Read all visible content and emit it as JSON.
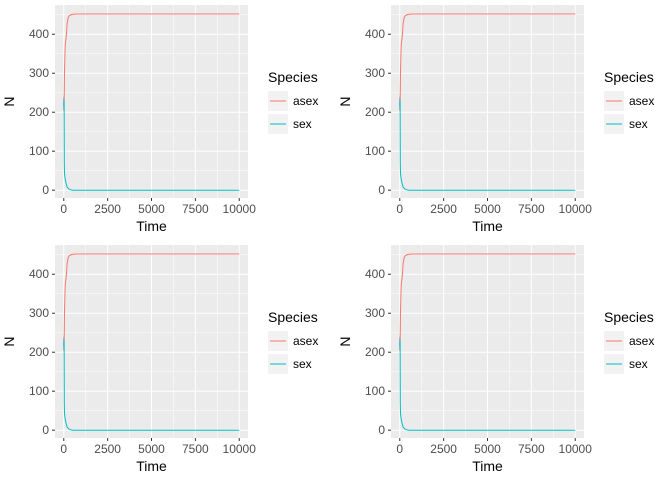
{
  "chart_data": [
    {
      "type": "line",
      "xlabel": "Time",
      "ylabel": "N",
      "xlim": [
        -500,
        10500
      ],
      "ylim": [
        -20,
        475
      ],
      "x_ticks": [
        0,
        2500,
        5000,
        7500,
        10000
      ],
      "x_tick_labels": [
        "0",
        "2500",
        "5000",
        "7500",
        "10000"
      ],
      "y_ticks": [
        0,
        100,
        200,
        300,
        400
      ],
      "y_tick_labels": [
        "0",
        "100",
        "200",
        "300",
        "400"
      ],
      "grid": true,
      "legend": {
        "title": "Species",
        "position": "right"
      },
      "series": [
        {
          "name": "asex",
          "color": "#F8766D",
          "x": [
            0,
            5,
            10,
            20,
            30,
            40,
            60,
            80,
            100,
            120,
            150,
            180,
            200,
            250,
            300,
            400,
            500,
            700,
            1000,
            2000,
            5000,
            7500,
            10000
          ],
          "y": [
            205,
            240,
            215,
            230,
            260,
            300,
            340,
            370,
            380,
            385,
            400,
            420,
            430,
            442,
            447,
            450,
            451,
            452,
            452,
            452,
            452,
            452,
            452
          ]
        },
        {
          "name": "sex",
          "color": "#00BFC4",
          "x": [
            0,
            5,
            10,
            20,
            30,
            40,
            60,
            80,
            100,
            120,
            150,
            180,
            200,
            250,
            300,
            400,
            500,
            700,
            1000,
            2000,
            5000,
            7500,
            10000
          ],
          "y": [
            215,
            225,
            235,
            220,
            68,
            45,
            35,
            28,
            24,
            20,
            15,
            10,
            8,
            5,
            3,
            1,
            0,
            0,
            0,
            0,
            0,
            0,
            0
          ]
        }
      ]
    },
    {
      "type": "line",
      "xlabel": "Time",
      "ylabel": "N",
      "xlim": [
        -500,
        10500
      ],
      "ylim": [
        -20,
        475
      ],
      "x_ticks": [
        0,
        2500,
        5000,
        7500,
        10000
      ],
      "x_tick_labels": [
        "0",
        "2500",
        "5000",
        "7500",
        "10000"
      ],
      "y_ticks": [
        0,
        100,
        200,
        300,
        400
      ],
      "y_tick_labels": [
        "0",
        "100",
        "200",
        "300",
        "400"
      ],
      "grid": true,
      "legend": {
        "title": "Species",
        "position": "right"
      },
      "series": [
        {
          "name": "asex",
          "color": "#F8766D",
          "x": [
            0,
            5,
            10,
            20,
            30,
            40,
            60,
            80,
            100,
            120,
            150,
            180,
            200,
            250,
            300,
            400,
            500,
            700,
            1000,
            2000,
            5000,
            7500,
            10000
          ],
          "y": [
            205,
            240,
            215,
            230,
            260,
            300,
            340,
            370,
            380,
            385,
            400,
            420,
            430,
            442,
            447,
            450,
            451,
            452,
            452,
            452,
            452,
            452,
            452
          ]
        },
        {
          "name": "sex",
          "color": "#00BFC4",
          "x": [
            0,
            5,
            10,
            20,
            30,
            40,
            60,
            80,
            100,
            120,
            150,
            180,
            200,
            250,
            300,
            400,
            500,
            700,
            1000,
            2000,
            5000,
            7500,
            10000
          ],
          "y": [
            215,
            225,
            235,
            220,
            68,
            45,
            35,
            28,
            24,
            20,
            15,
            10,
            8,
            5,
            3,
            1,
            0,
            0,
            0,
            0,
            0,
            0,
            0
          ]
        }
      ]
    },
    {
      "type": "line",
      "xlabel": "Time",
      "ylabel": "N",
      "xlim": [
        -500,
        10500
      ],
      "ylim": [
        -20,
        475
      ],
      "x_ticks": [
        0,
        2500,
        5000,
        7500,
        10000
      ],
      "x_tick_labels": [
        "0",
        "2500",
        "5000",
        "7500",
        "10000"
      ],
      "y_ticks": [
        0,
        100,
        200,
        300,
        400
      ],
      "y_tick_labels": [
        "0",
        "100",
        "200",
        "300",
        "400"
      ],
      "grid": true,
      "legend": {
        "title": "Species",
        "position": "right"
      },
      "series": [
        {
          "name": "asex",
          "color": "#F8766D",
          "x": [
            0,
            5,
            10,
            20,
            30,
            40,
            60,
            80,
            100,
            120,
            150,
            180,
            200,
            250,
            300,
            400,
            500,
            700,
            1000,
            2000,
            5000,
            7500,
            10000
          ],
          "y": [
            205,
            240,
            215,
            230,
            260,
            300,
            340,
            370,
            380,
            385,
            400,
            420,
            430,
            442,
            447,
            450,
            451,
            452,
            452,
            452,
            452,
            452,
            452
          ]
        },
        {
          "name": "sex",
          "color": "#00BFC4",
          "x": [
            0,
            5,
            10,
            20,
            30,
            40,
            60,
            80,
            100,
            120,
            150,
            180,
            200,
            250,
            300,
            400,
            500,
            700,
            1000,
            2000,
            5000,
            7500,
            10000
          ],
          "y": [
            215,
            225,
            235,
            220,
            68,
            45,
            35,
            28,
            24,
            20,
            15,
            10,
            8,
            5,
            3,
            1,
            0,
            0,
            0,
            0,
            0,
            0,
            0
          ]
        }
      ]
    },
    {
      "type": "line",
      "xlabel": "Time",
      "ylabel": "N",
      "xlim": [
        -500,
        10500
      ],
      "ylim": [
        -20,
        475
      ],
      "x_ticks": [
        0,
        2500,
        5000,
        7500,
        10000
      ],
      "x_tick_labels": [
        "0",
        "2500",
        "5000",
        "7500",
        "10000"
      ],
      "y_ticks": [
        0,
        100,
        200,
        300,
        400
      ],
      "y_tick_labels": [
        "0",
        "100",
        "200",
        "300",
        "400"
      ],
      "grid": true,
      "legend": {
        "title": "Species",
        "position": "right"
      },
      "series": [
        {
          "name": "asex",
          "color": "#F8766D",
          "x": [
            0,
            5,
            10,
            20,
            30,
            40,
            60,
            80,
            100,
            120,
            150,
            180,
            200,
            250,
            300,
            400,
            500,
            700,
            1000,
            2000,
            5000,
            7500,
            10000
          ],
          "y": [
            205,
            240,
            215,
            230,
            260,
            300,
            340,
            370,
            380,
            385,
            400,
            420,
            430,
            442,
            447,
            450,
            451,
            452,
            452,
            452,
            452,
            452,
            452
          ]
        },
        {
          "name": "sex",
          "color": "#00BFC4",
          "x": [
            0,
            5,
            10,
            20,
            30,
            40,
            60,
            80,
            100,
            120,
            150,
            180,
            200,
            250,
            300,
            400,
            500,
            700,
            1000,
            2000,
            5000,
            7500,
            10000
          ],
          "y": [
            215,
            225,
            235,
            220,
            68,
            45,
            35,
            28,
            24,
            20,
            15,
            10,
            8,
            5,
            3,
            1,
            0,
            0,
            0,
            0,
            0,
            0,
            0
          ]
        }
      ]
    }
  ]
}
